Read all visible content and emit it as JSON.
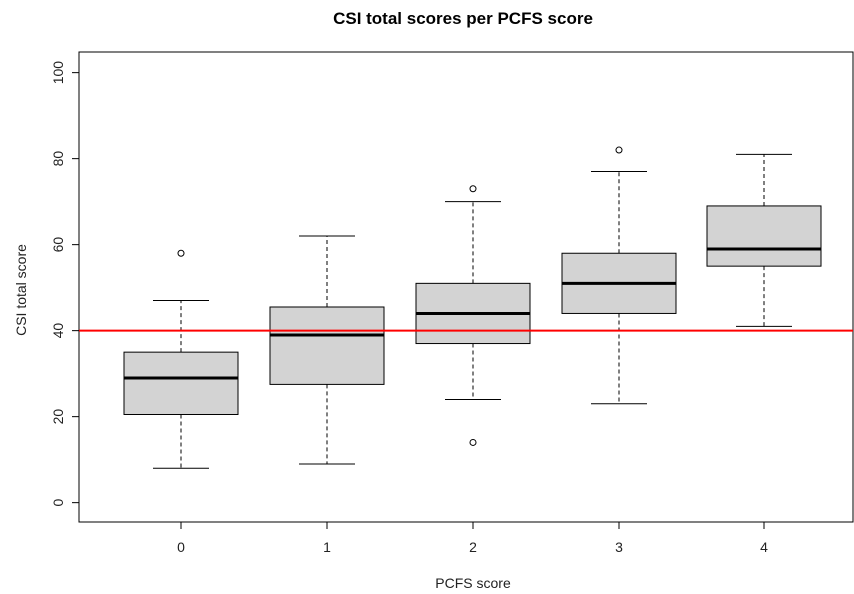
{
  "chart_data": {
    "type": "boxplot",
    "title": "CSI total scores per PCFS score",
    "xlabel": "PCFS score",
    "ylabel": "CSI total score",
    "categories": [
      "0",
      "1",
      "2",
      "3",
      "4"
    ],
    "ylim": [
      0,
      100
    ],
    "yticks": [
      0,
      20,
      40,
      60,
      80,
      100
    ],
    "boxes": [
      {
        "category": "0",
        "whisker_low": 8,
        "q1": 20.5,
        "median": 29,
        "q3": 35,
        "whisker_high": 47,
        "outliers": [
          58
        ]
      },
      {
        "category": "1",
        "whisker_low": 9,
        "q1": 27.5,
        "median": 39,
        "q3": 45.5,
        "whisker_high": 62,
        "outliers": []
      },
      {
        "category": "2",
        "whisker_low": 24,
        "q1": 37,
        "median": 44,
        "q3": 51,
        "whisker_high": 70,
        "outliers": [
          73,
          14
        ]
      },
      {
        "category": "3",
        "whisker_low": 23,
        "q1": 44,
        "median": 51,
        "q3": 58,
        "whisker_high": 77,
        "outliers": [
          82
        ]
      },
      {
        "category": "4",
        "whisker_low": 41,
        "q1": 55,
        "median": 59,
        "q3": 69,
        "whisker_high": 81,
        "outliers": []
      }
    ],
    "reference_line": {
      "y": 40,
      "color": "#ff0000"
    },
    "box_fill": "#d3d3d3",
    "grid": false,
    "legend": "none"
  }
}
